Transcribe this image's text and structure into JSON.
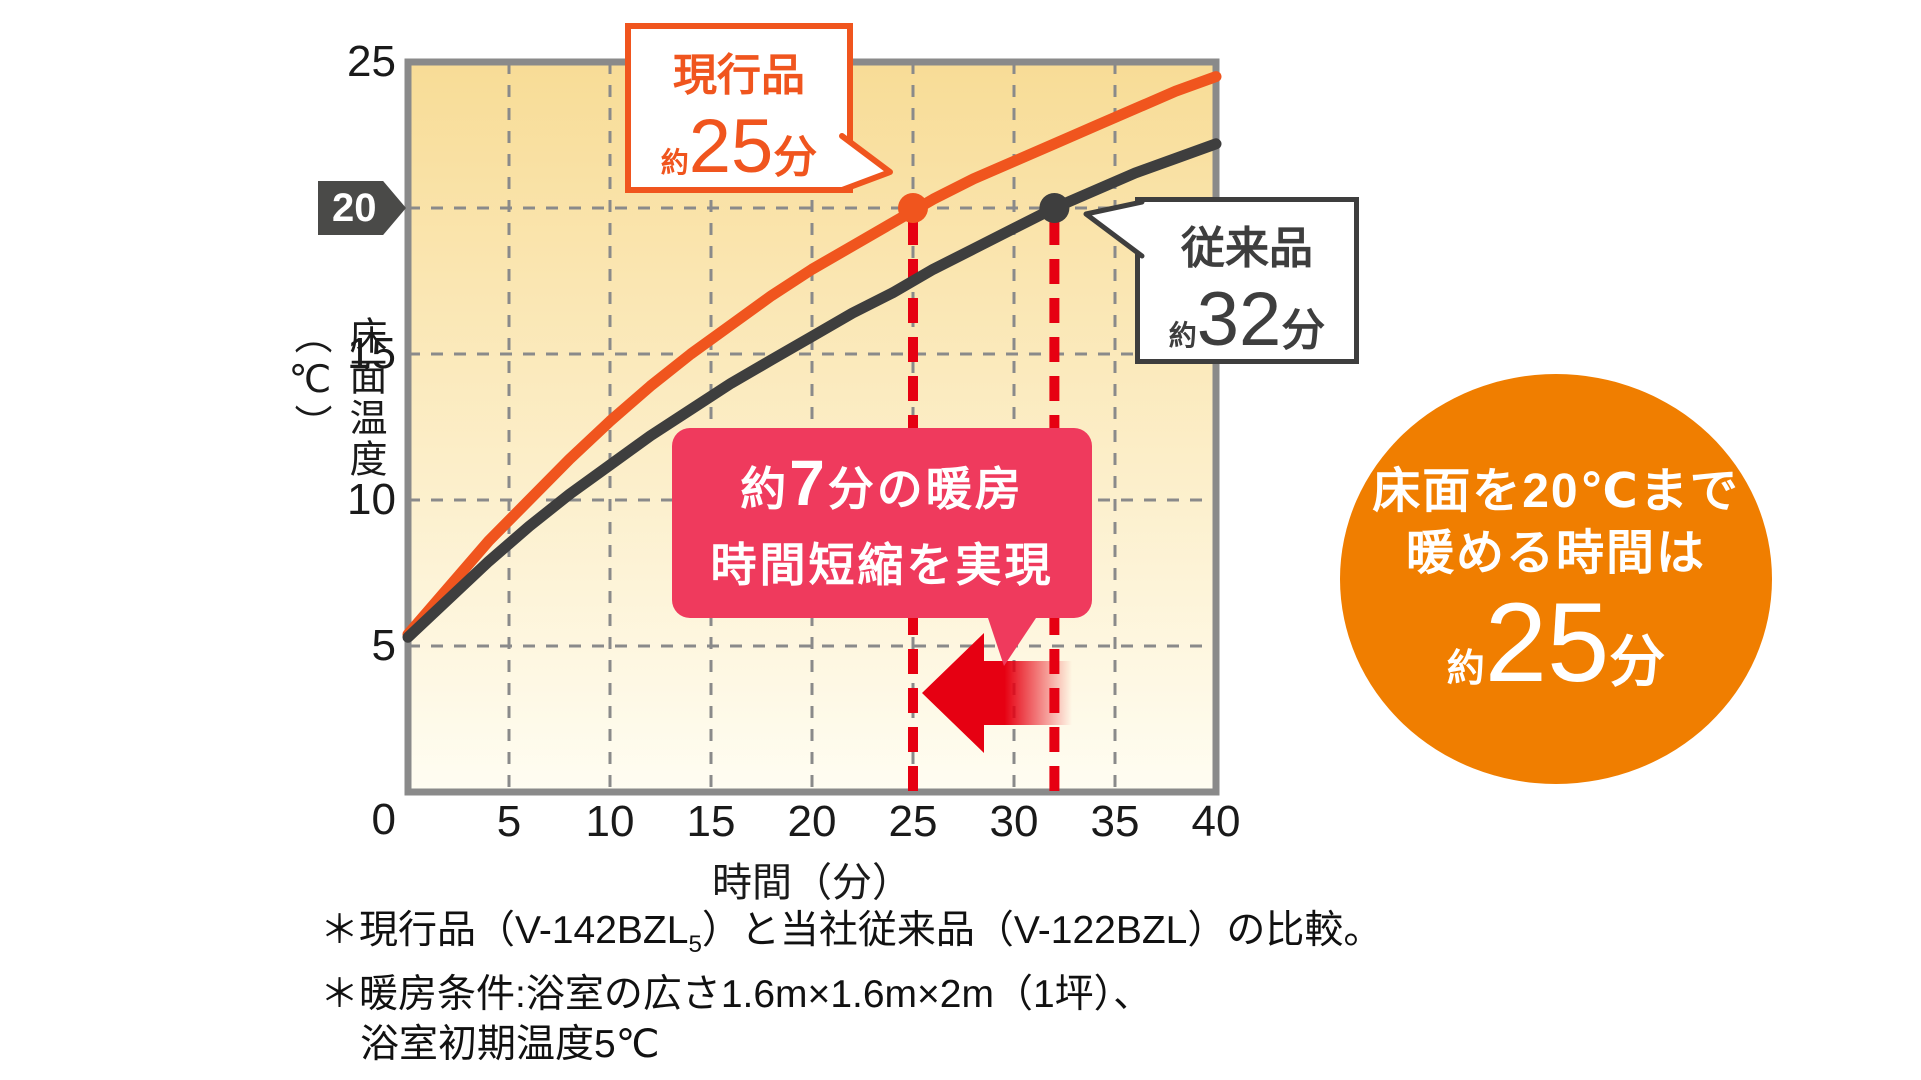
{
  "chart": {
    "y_axis_title": "床面温度（℃）",
    "x_axis_title": "時間（分）",
    "badge_label": "20",
    "origin_label": "0"
  },
  "chart_data": {
    "type": "line",
    "title": "",
    "xlabel": "時間（分）",
    "ylabel": "床面温度（℃）",
    "xlim": [
      0,
      40
    ],
    "ylim": [
      0,
      25
    ],
    "x_ticks": [
      5,
      10,
      15,
      20,
      25,
      30,
      35,
      40
    ],
    "y_ticks": [
      5,
      10,
      15,
      20,
      25
    ],
    "grid": true,
    "highlighted_y": 20,
    "series": [
      {
        "name": "現行品",
        "color_key": "orange",
        "points": [
          [
            0,
            5.4
          ],
          [
            2,
            7.0
          ],
          [
            4,
            8.6
          ],
          [
            6,
            10.0
          ],
          [
            8,
            11.4
          ],
          [
            10,
            12.7
          ],
          [
            12,
            13.9
          ],
          [
            14,
            15.0
          ],
          [
            16,
            16.0
          ],
          [
            18,
            17.0
          ],
          [
            20,
            17.9
          ],
          [
            22,
            18.7
          ],
          [
            24,
            19.5
          ],
          [
            26,
            20.3
          ],
          [
            28,
            21.0
          ],
          [
            30,
            21.6
          ],
          [
            32,
            22.2
          ],
          [
            34,
            22.8
          ],
          [
            36,
            23.4
          ],
          [
            38,
            24.0
          ],
          [
            40,
            24.5
          ]
        ],
        "marker": {
          "x": 25,
          "y": 20
        },
        "annotation": "約25分"
      },
      {
        "name": "従来品",
        "color_key": "dark",
        "points": [
          [
            0,
            5.3
          ],
          [
            2,
            6.6
          ],
          [
            4,
            7.9
          ],
          [
            6,
            9.1
          ],
          [
            8,
            10.2
          ],
          [
            10,
            11.2
          ],
          [
            12,
            12.2
          ],
          [
            14,
            13.1
          ],
          [
            16,
            14.0
          ],
          [
            18,
            14.8
          ],
          [
            20,
            15.6
          ],
          [
            22,
            16.4
          ],
          [
            24,
            17.1
          ],
          [
            26,
            17.9
          ],
          [
            28,
            18.6
          ],
          [
            30,
            19.3
          ],
          [
            32,
            20.0
          ],
          [
            34,
            20.6
          ],
          [
            36,
            21.2
          ],
          [
            38,
            21.7
          ],
          [
            40,
            22.2
          ]
        ],
        "marker": {
          "x": 32,
          "y": 20
        },
        "annotation": "約32分"
      }
    ],
    "reference_lines": {
      "y": 20,
      "x": [
        25,
        32
      ]
    }
  },
  "callouts": {
    "current": {
      "title": "現行品",
      "prefix": "約",
      "value": "25",
      "suffix": "分"
    },
    "conventional": {
      "title": "従来品",
      "prefix": "約",
      "value": "32",
      "suffix": "分"
    },
    "savings": {
      "line1_pre": "約",
      "line1_num": "7",
      "line1_post": "分の暖房",
      "line2": "時間短縮を実現"
    },
    "circle": {
      "line1": "床面を20℃まで",
      "line2": "暖める時間は",
      "prefix": "約",
      "value": "25",
      "suffix": "分"
    }
  },
  "footnotes": {
    "line1_pre": "＊現行品（V-142BZL",
    "line1_sub": "5",
    "line1_post": "）と当社従来品（V-122BZL）の比較。",
    "line2": "＊暖房条件:浴室の広さ1.6m×1.6m×2m（1坪）、",
    "line3": "浴室初期温度5℃"
  },
  "colors": {
    "orange": "#F0551E",
    "dark": "#3E3E3E",
    "red": "#E60012",
    "pink": "#EF3A5D",
    "circle_orange": "#F07E00",
    "badge_bg": "#4A4A48",
    "plot_border": "#8A8A8A",
    "plot_bg_top": "#F8DC96",
    "plot_bg_bottom": "#FFFDF2",
    "text": "#1A1A1A"
  }
}
